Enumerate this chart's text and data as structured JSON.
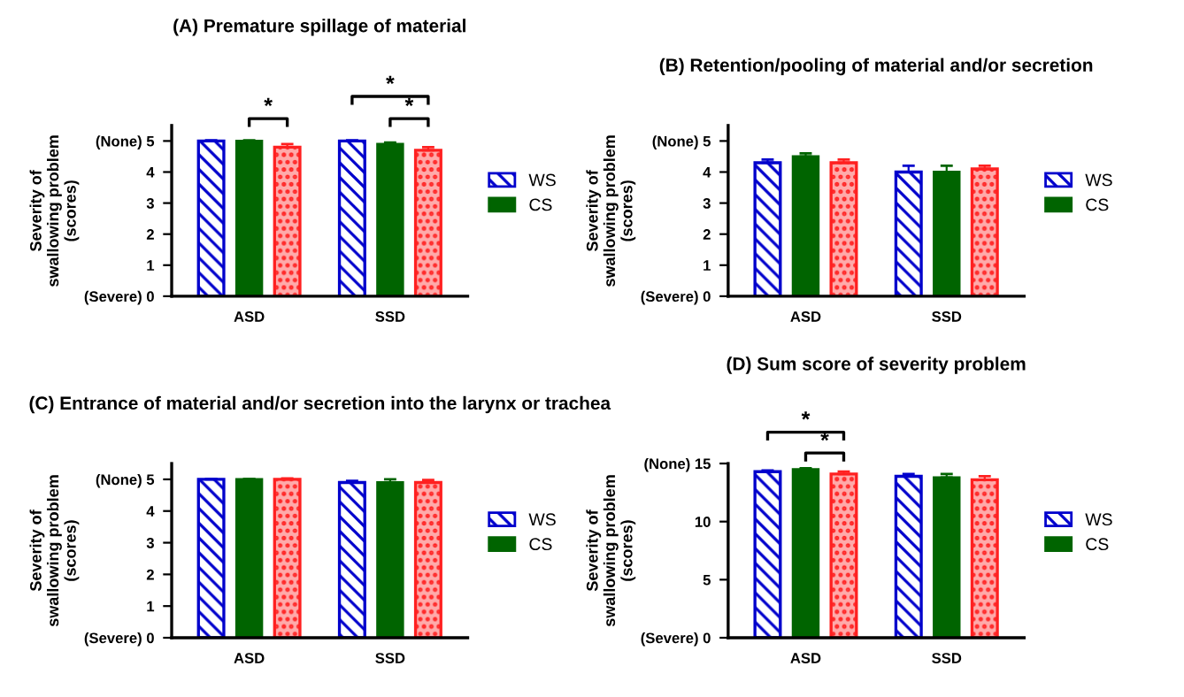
{
  "chart_data": [
    {
      "type": "bar",
      "title": "(A) Premature spillage of material",
      "ylabel": "Severity of\nswallowing problem\n(scores)",
      "categories": [
        "ASD",
        "SSD"
      ],
      "ylim": [
        0,
        5.5
      ],
      "yticks": [
        {
          "value": 0,
          "label": "(Severe) 0"
        },
        1,
        2,
        3,
        4,
        {
          "value": 5,
          "label": "(None) 5"
        }
      ],
      "legend": "right",
      "grid": false,
      "series": [
        {
          "name": "WS",
          "color": "#0000cc",
          "values": [
            5.0,
            5.0
          ],
          "errors": [
            0.02,
            0.02
          ]
        },
        {
          "name": "CS",
          "color": "#006400",
          "values": [
            5.0,
            4.9
          ],
          "errors": [
            0.02,
            0.05
          ]
        },
        {
          "color": "#ff2020",
          "values": [
            4.8,
            4.7
          ],
          "errors": [
            0.1,
            0.1
          ]
        }
      ],
      "annotations": [
        "*",
        "*",
        "*"
      ]
    },
    {
      "type": "bar",
      "title": "(B) Retention/pooling of material and/or secretion",
      "ylabel": "Severity of\nswallowing problem\n(scores)",
      "categories": [
        "ASD",
        "SSD"
      ],
      "ylim": [
        0,
        5.5
      ],
      "yticks": [
        {
          "value": 0,
          "label": "(Severe) 0"
        },
        1,
        2,
        3,
        4,
        {
          "value": 5,
          "label": "(None) 5"
        }
      ],
      "legend": "right",
      "grid": false,
      "series": [
        {
          "name": "WS",
          "color": "#0000cc",
          "values": [
            4.3,
            4.0
          ],
          "errors": [
            0.1,
            0.2
          ]
        },
        {
          "name": "CS",
          "color": "#006400",
          "values": [
            4.5,
            4.0
          ],
          "errors": [
            0.1,
            0.2
          ]
        },
        {
          "color": "#ff2020",
          "values": [
            4.3,
            4.1
          ],
          "errors": [
            0.1,
            0.1
          ]
        }
      ]
    },
    {
      "type": "bar",
      "title": "(C) Entrance of material and/or secretion into the larynx or trachea",
      "ylabel": "Severity of\nswallowing problem\n(scores)",
      "categories": [
        "ASD",
        "SSD"
      ],
      "ylim": [
        0,
        5.5
      ],
      "yticks": [
        {
          "value": 0,
          "label": "(Severe) 0"
        },
        1,
        2,
        3,
        4,
        {
          "value": 5,
          "label": "(None) 5"
        }
      ],
      "legend": "right",
      "grid": false,
      "series": [
        {
          "name": "WS",
          "color": "#0000cc",
          "values": [
            5.0,
            4.9
          ],
          "errors": [
            0.01,
            0.05
          ]
        },
        {
          "name": "CS",
          "color": "#006400",
          "values": [
            5.0,
            4.9
          ],
          "errors": [
            0.01,
            0.1
          ]
        },
        {
          "color": "#ff2020",
          "values": [
            5.0,
            4.9
          ],
          "errors": [
            0.03,
            0.08
          ]
        }
      ]
    },
    {
      "type": "bar",
      "title": "(D) Sum score of severity problem",
      "ylabel": "Severity of\nswallowing problem\n(scores)",
      "categories": [
        "ASD",
        "SSD"
      ],
      "ylim": [
        0,
        15
      ],
      "yticks": [
        {
          "value": 0,
          "label": "(Severe) 0"
        },
        5,
        10,
        {
          "value": 15,
          "label": "(None) 15"
        }
      ],
      "legend": "right",
      "grid": false,
      "series": [
        {
          "name": "WS",
          "color": "#0000cc",
          "values": [
            14.3,
            13.9
          ],
          "errors": [
            0.1,
            0.2
          ]
        },
        {
          "name": "CS",
          "color": "#006400",
          "values": [
            14.5,
            13.8
          ],
          "errors": [
            0.1,
            0.3
          ]
        },
        {
          "color": "#ff2020",
          "values": [
            14.1,
            13.6
          ],
          "errors": [
            0.2,
            0.3
          ]
        }
      ],
      "annotations": [
        "*",
        "*"
      ]
    }
  ]
}
